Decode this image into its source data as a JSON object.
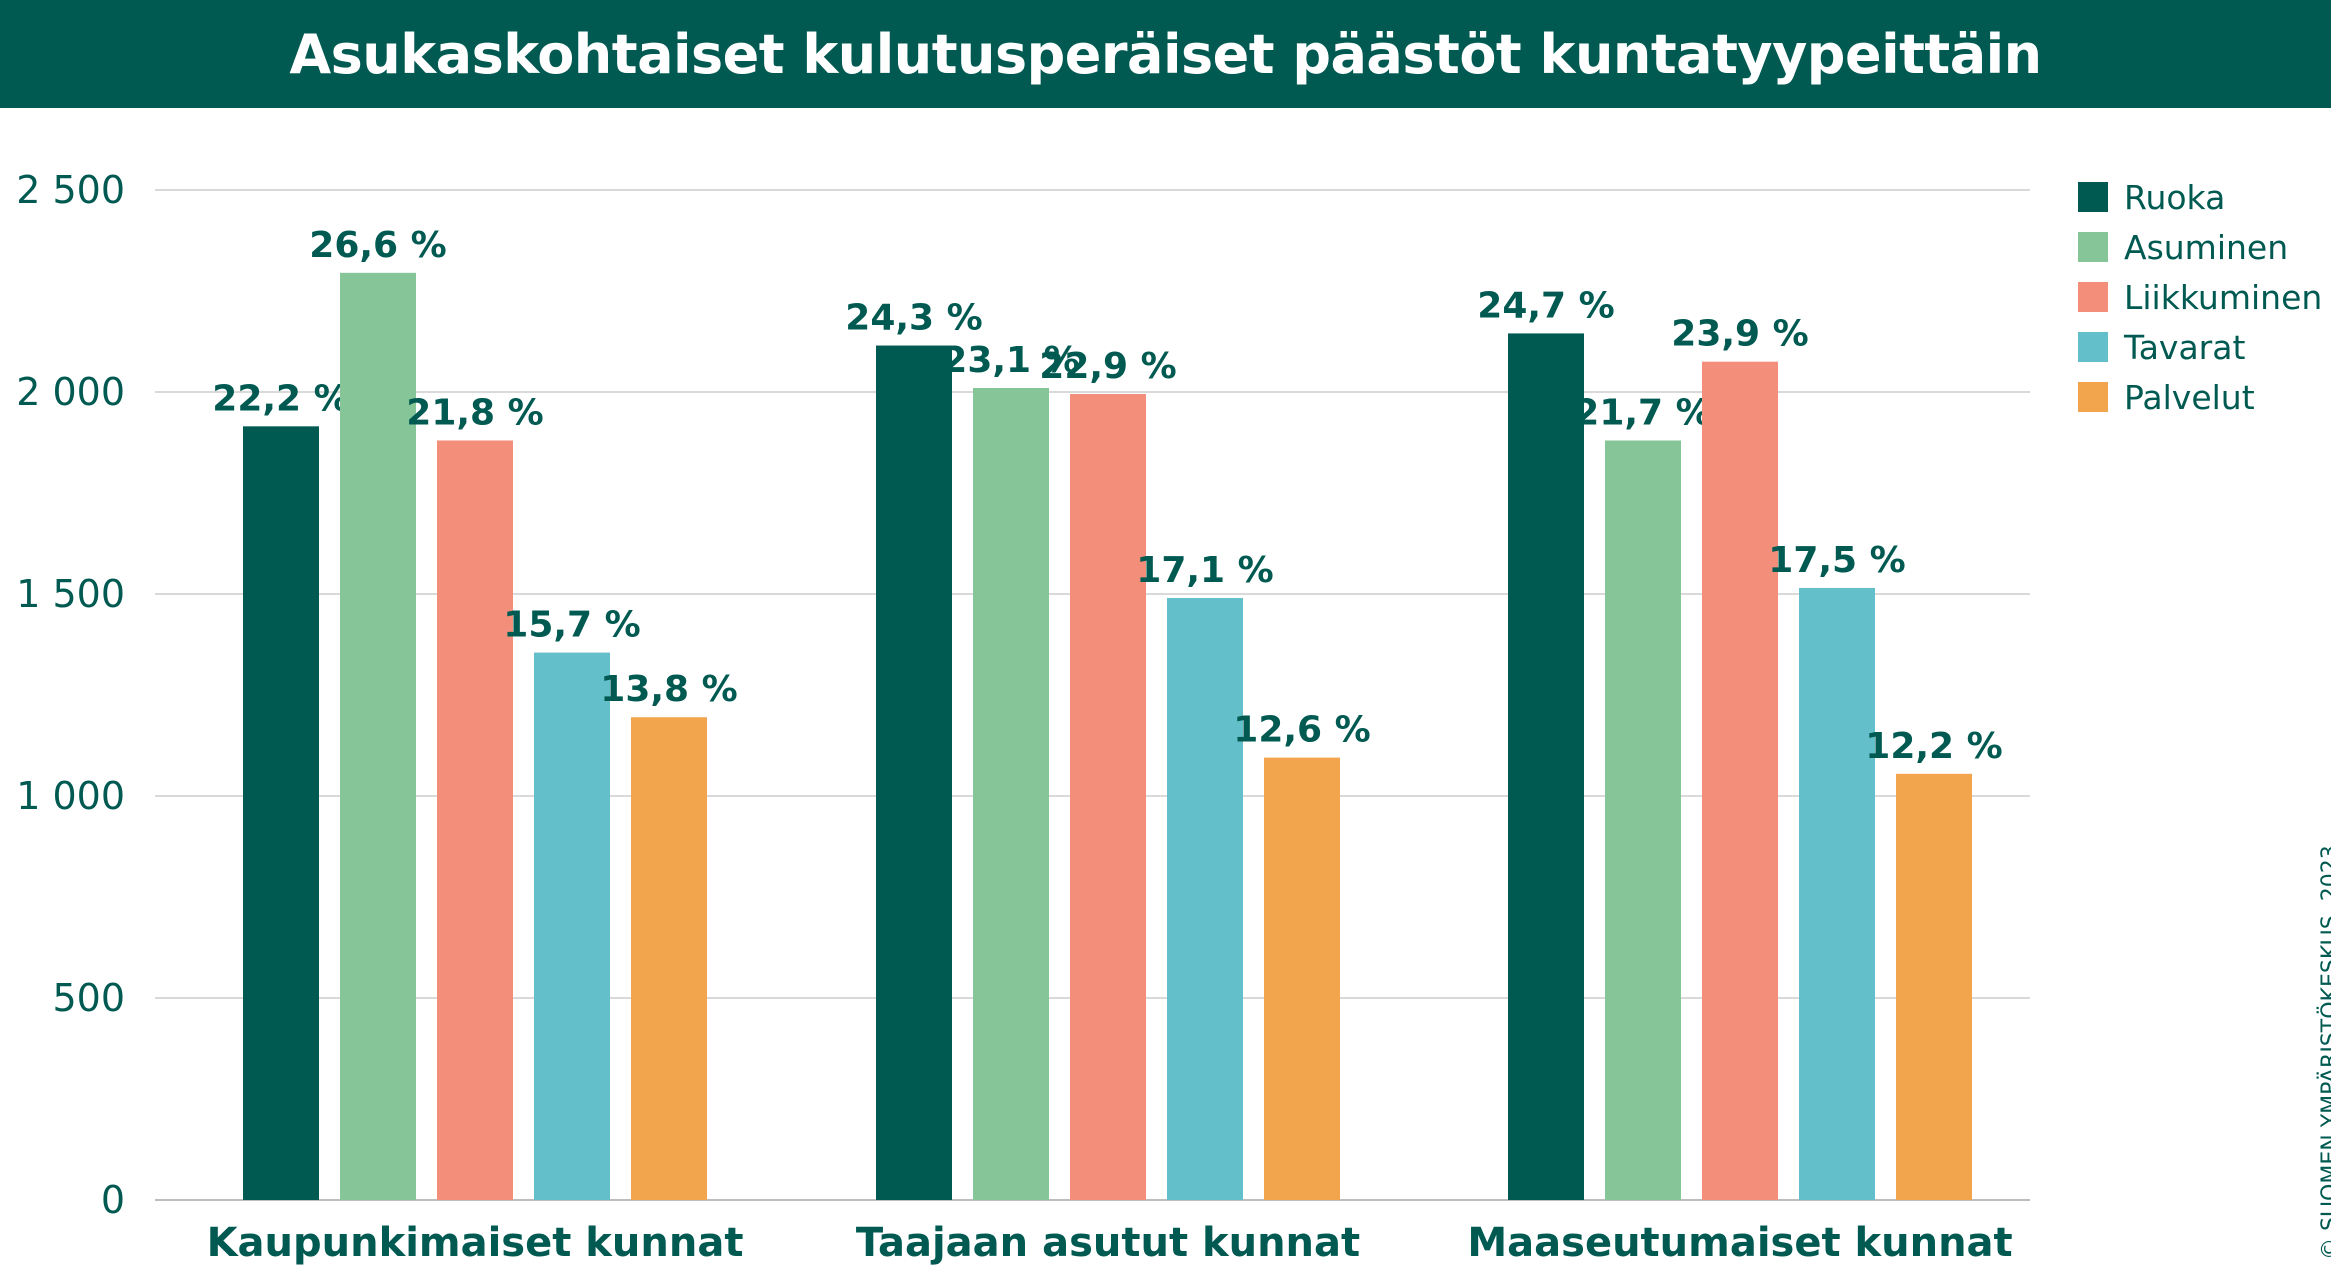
{
  "header": {
    "title": "Asukaskohtaiset kulutusperäiset päästöt kuntatyypeittäin"
  },
  "credit": "© SUOMEN YMPÄRISTÖKESKUS. 2023.",
  "colors": {
    "title_bg": "#005a51",
    "text": "#005a51",
    "grid": "#d9d9d9",
    "axis_text": "#005a51"
  },
  "chart_data": {
    "type": "bar",
    "title": "Asukaskohtaiset kulutusperäiset päästöt kuntatyypeittäin",
    "xlabel": "",
    "ylabel": "",
    "ylim": [
      0,
      2500
    ],
    "yticks": [
      0,
      500,
      1000,
      1500,
      2000,
      2500
    ],
    "ytick_labels": [
      "0",
      "500",
      "1 000",
      "1 500",
      "2 000",
      "2 500"
    ],
    "grid": true,
    "legend_position": "top-right",
    "categories": [
      "Kaupunkimaiset kunnat",
      "Taajaan asutut kunnat",
      "Maaseutumaiset kunnat"
    ],
    "series": [
      {
        "name": "Ruoka",
        "color": "#005a51",
        "values": [
          1915,
          2115,
          2145
        ],
        "labels": [
          "22,2 %",
          "24,3 %",
          "24,7 %"
        ]
      },
      {
        "name": "Asuminen",
        "color": "#86c597",
        "values": [
          2295,
          2010,
          1880
        ],
        "labels": [
          "26,6 %",
          "23,1 %",
          "21,7 %"
        ]
      },
      {
        "name": "Liikkuminen",
        "color": "#f28e7a",
        "values": [
          1880,
          1995,
          2075
        ],
        "labels": [
          "21,8 %",
          "22,9 %",
          "23,9 %"
        ]
      },
      {
        "name": "Tavarat",
        "color": "#63c0cb",
        "values": [
          1355,
          1490,
          1515
        ],
        "labels": [
          "15,7 %",
          "17,1 %",
          "17,5 %"
        ]
      },
      {
        "name": "Palvelut",
        "color": "#f3a54d",
        "values": [
          1195,
          1095,
          1055
        ],
        "labels": [
          "13,8 %",
          "12,6 %",
          "12,2 %"
        ]
      }
    ]
  }
}
